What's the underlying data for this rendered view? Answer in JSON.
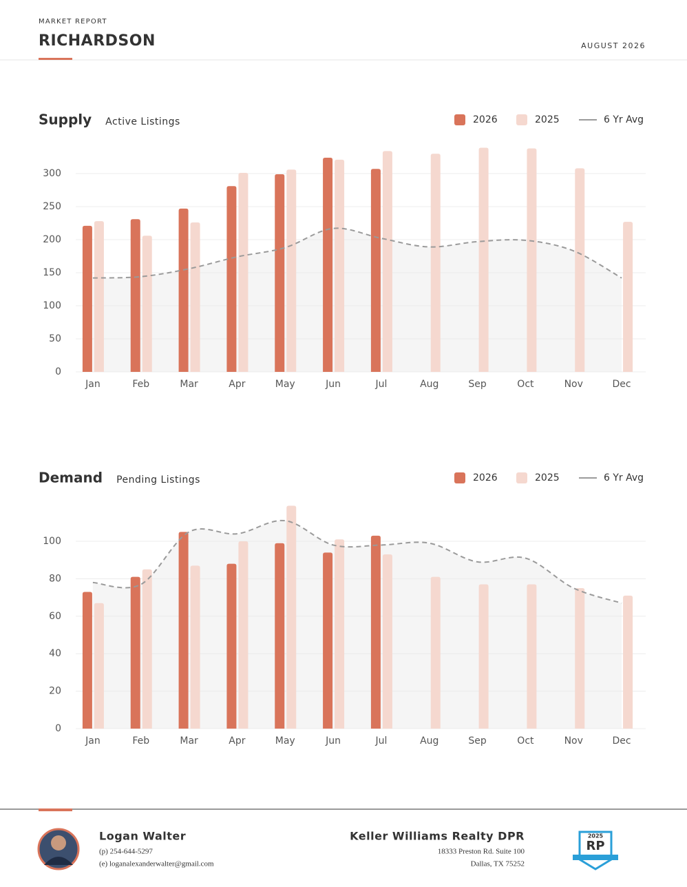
{
  "header": {
    "kicker": "MARKET REPORT",
    "title": "RICHARDSON",
    "date": "AUGUST 2026"
  },
  "chart_data": [
    {
      "type": "bar",
      "title": "Supply",
      "subtitle": "Active Listings",
      "categories": [
        "Jan",
        "Feb",
        "Mar",
        "Apr",
        "May",
        "Jun",
        "Jul",
        "Aug",
        "Sep",
        "Oct",
        "Nov",
        "Dec"
      ],
      "series": [
        {
          "name": "2026",
          "color": "#d9745a",
          "values": [
            221,
            231,
            247,
            281,
            299,
            324,
            307,
            null,
            null,
            null,
            null,
            null
          ]
        },
        {
          "name": "2025",
          "color": "#f5d8cf",
          "values": [
            228,
            206,
            226,
            301,
            306,
            321,
            334,
            330,
            339,
            338,
            308,
            227
          ]
        },
        {
          "name": "6 Yr Avg",
          "color": "#9a9a9a",
          "type": "line",
          "values": [
            142,
            144,
            156,
            174,
            188,
            217,
            202,
            189,
            197,
            199,
            183,
            142
          ]
        }
      ],
      "ylim": [
        0,
        350
      ],
      "yticks": [
        0,
        50,
        100,
        150,
        200,
        250,
        300
      ],
      "grid": true
    },
    {
      "type": "bar",
      "title": "Demand",
      "subtitle": "Pending Listings",
      "categories": [
        "Jan",
        "Feb",
        "Mar",
        "Apr",
        "May",
        "Jun",
        "Jul",
        "Aug",
        "Sep",
        "Oct",
        "Nov",
        "Dec"
      ],
      "series": [
        {
          "name": "2026",
          "color": "#d9745a",
          "values": [
            73,
            81,
            105,
            88,
            99,
            94,
            103,
            null,
            null,
            null,
            null,
            null
          ]
        },
        {
          "name": "2025",
          "color": "#f5d8cf",
          "values": [
            67,
            85,
            87,
            100,
            119,
            101,
            93,
            81,
            77,
            77,
            75,
            71
          ]
        },
        {
          "name": "6 Yr Avg",
          "color": "#9a9a9a",
          "type": "line",
          "values": [
            78,
            77,
            105,
            104,
            111,
            98,
            98,
            99,
            89,
            91,
            75,
            67
          ]
        }
      ],
      "ylim": [
        0,
        125
      ],
      "yticks": [
        0,
        20,
        40,
        60,
        80,
        100
      ],
      "grid": true
    }
  ],
  "agent": {
    "name": "Logan Walter",
    "phone": "(p) 254-644-5297",
    "email": "(e) loganalexanderwalter@gmail.com"
  },
  "company": {
    "name": "Keller Williams Realty DPR",
    "address": [
      "18333 Preston Rd. Suite 100",
      "Dallas, TX 75252"
    ]
  },
  "badge": {
    "year": "2025",
    "letters": "RP"
  }
}
